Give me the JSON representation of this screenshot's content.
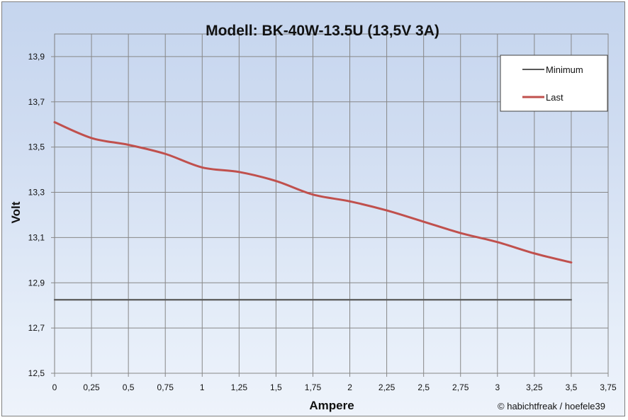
{
  "chart_data": {
    "type": "line",
    "title": "Modell: BK-40W-13.5U  (13,5V 3A)",
    "xlabel": "Ampere",
    "ylabel": "Volt",
    "xlim": [
      0,
      3.75
    ],
    "ylim": [
      12.5,
      14.0
    ],
    "x_ticks": [
      0,
      0.25,
      0.5,
      0.75,
      1,
      1.25,
      1.5,
      1.75,
      2,
      2.25,
      2.5,
      2.75,
      3,
      3.25,
      3.5,
      3.75
    ],
    "x_tick_labels": [
      "0",
      "0,25",
      "0,5",
      "0,75",
      "1",
      "1,25",
      "1,5",
      "1,75",
      "2",
      "2,25",
      "2,5",
      "2,75",
      "3",
      "3,25",
      "3,5",
      "3,75"
    ],
    "y_ticks": [
      12.5,
      12.7,
      12.9,
      13.1,
      13.3,
      13.5,
      13.7,
      13.9
    ],
    "y_tick_labels": [
      "12,5",
      "12,7",
      "12,9",
      "13,1",
      "13,3",
      "13,5",
      "13,7",
      "13,9"
    ],
    "grid": true,
    "legend_position": "top-right",
    "series": [
      {
        "name": "Minimum",
        "color": "#595959",
        "x": [
          0,
          3.5
        ],
        "y": [
          12.825,
          12.825
        ]
      },
      {
        "name": "Last",
        "color": "#c0504d",
        "x": [
          0,
          0.25,
          0.5,
          0.75,
          1,
          1.25,
          1.5,
          1.75,
          2,
          2.25,
          2.5,
          2.75,
          3,
          3.25,
          3.5
        ],
        "y": [
          13.61,
          13.54,
          13.51,
          13.47,
          13.41,
          13.39,
          13.35,
          13.29,
          13.26,
          13.22,
          13.17,
          13.12,
          13.08,
          13.03,
          12.99
        ]
      }
    ],
    "credit": "© habichtfreak  / hoefele39"
  }
}
